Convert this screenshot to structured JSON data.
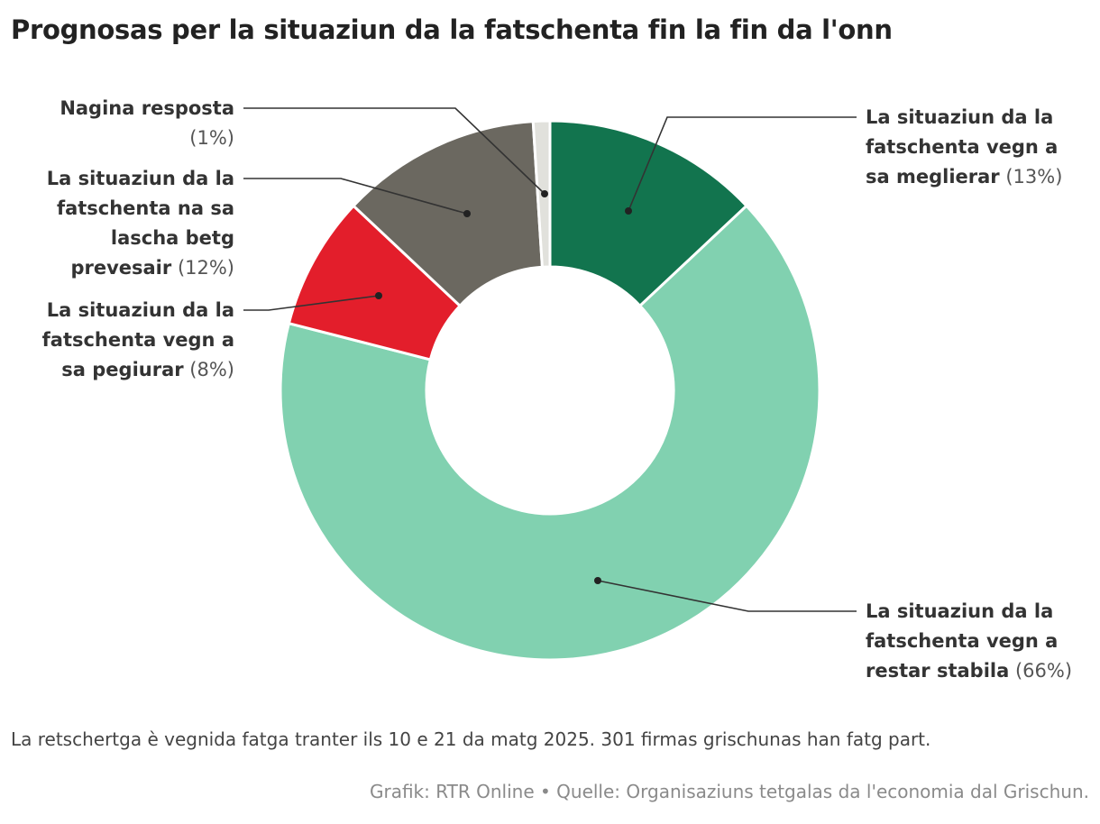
{
  "chart_data": {
    "type": "pie",
    "variant": "donut",
    "title": "Prognosas per la situaziun da la fatschenta fin la fin da l'onn",
    "categories": [
      "La situaziun da la fatschenta vegn a sa meglierar",
      "La situaziun da la fatschenta vegn a restar stabila",
      "La situaziun da la fatschenta vegn a sa pegiurar",
      "La situaziun da la fatschenta na sa lascha betg prevesair",
      "Nagina resposta"
    ],
    "values": [
      13,
      66,
      8,
      12,
      1
    ],
    "value_labels": [
      "(13%)",
      "(66%)",
      "(8%)",
      "(12%)",
      "(1%)"
    ],
    "colors": [
      "#12744e",
      "#81d1b0",
      "#e31e2b",
      "#6b6860",
      "#e1e1dc"
    ],
    "note": "La retschertga è vegnida fatga tranter ils 10 e 21 da matg 2025. 301 firmas grischunas han fatg part.",
    "source": "Grafik: RTR Online • Quelle: Organisaziuns tetgalas da l'economia dal Grischun."
  },
  "labels": {
    "improve": {
      "lines": [
        "La situaziun da la",
        "fatschenta vegn a"
      ],
      "last": "sa meglierar"
    },
    "stable": {
      "lines": [
        "La situaziun da la",
        "fatschenta vegn a"
      ],
      "last": "restar stabila"
    },
    "worse": {
      "lines": [
        "La situaziun da la",
        "fatschenta vegn a"
      ],
      "last": "sa pegiurar"
    },
    "unpredictable": {
      "lines": [
        "La situaziun da la",
        "fatschenta na sa",
        "lascha betg"
      ],
      "last": "prevesair"
    },
    "no_answer": {
      "lines": [],
      "last": "Nagina resposta"
    }
  }
}
